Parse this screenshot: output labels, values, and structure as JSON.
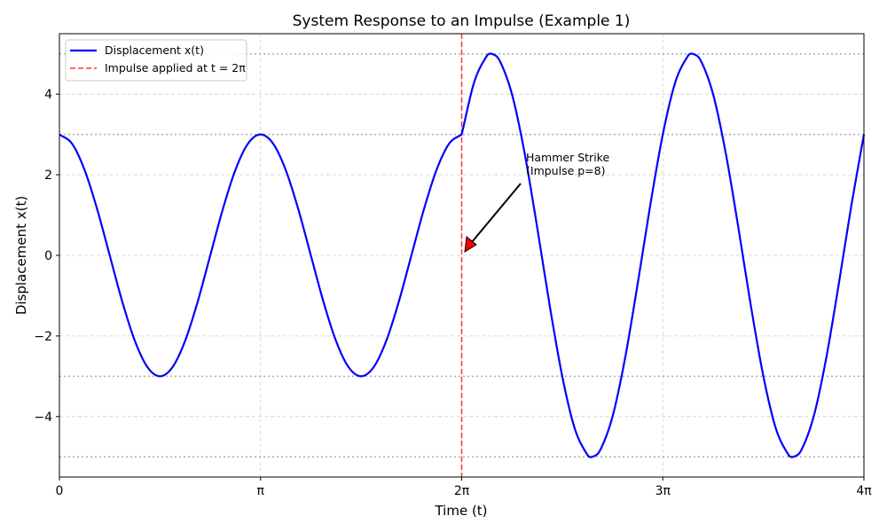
{
  "chart_data": {
    "type": "line",
    "title": "System Response to an Impulse (Example 1)",
    "xlabel": "Time (t)",
    "ylabel": "Displacement x(t)",
    "x_unit": "π",
    "xlim": [
      0,
      4
    ],
    "ylim": [
      -5.5,
      5.5
    ],
    "xticks": [
      {
        "v": 0,
        "label": "0"
      },
      {
        "v": 1,
        "label": "π"
      },
      {
        "v": 2,
        "label": "2π"
      },
      {
        "v": 3,
        "label": "3π"
      },
      {
        "v": 4,
        "label": "4π"
      }
    ],
    "yticks": [
      {
        "v": -4,
        "label": "−4"
      },
      {
        "v": -2,
        "label": "−2"
      },
      {
        "v": 0,
        "label": "0"
      },
      {
        "v": 2,
        "label": "2"
      },
      {
        "v": 4,
        "label": "4"
      }
    ],
    "grid": true,
    "legend_position": "top-left",
    "reference_lines_y": [
      3,
      -3,
      5,
      -5
    ],
    "series": [
      {
        "name": "Displacement x(t)",
        "color": "#0000ff",
        "x": [
          0,
          0.0625,
          0.125,
          0.1875,
          0.25,
          0.3125,
          0.375,
          0.4375,
          0.5,
          0.5625,
          0.625,
          0.6875,
          0.75,
          0.8125,
          0.875,
          0.9375,
          1,
          1.0625,
          1.125,
          1.1875,
          1.25,
          1.3125,
          1.375,
          1.4375,
          1.5,
          1.5625,
          1.625,
          1.6875,
          1.75,
          1.8125,
          1.875,
          1.9375,
          2,
          2.0625,
          2.125,
          2.1476,
          2.1875,
          2.25,
          2.3125,
          2.375,
          2.4375,
          2.5,
          2.5625,
          2.625,
          2.6476,
          2.6875,
          2.75,
          2.8125,
          2.875,
          2.9375,
          3,
          3.0625,
          3.125,
          3.1476,
          3.1875,
          3.25,
          3.3125,
          3.375,
          3.4375,
          3.5,
          3.5625,
          3.625,
          3.6476,
          3.6875,
          3.75,
          3.8125,
          3.875,
          3.9375,
          4
        ],
        "y": [
          3,
          2.772,
          2.121,
          1.148,
          0,
          -1.148,
          -2.121,
          -2.772,
          -3,
          -2.772,
          -2.121,
          -1.148,
          0,
          1.148,
          2.121,
          2.772,
          3,
          2.772,
          2.121,
          1.148,
          0,
          -1.148,
          -2.121,
          -2.772,
          -3,
          -2.772,
          -2.121,
          -1.148,
          0,
          1.148,
          2.121,
          2.772,
          3,
          4.303,
          4.95,
          5,
          4.844,
          4,
          2.548,
          0.707,
          -1.241,
          -3,
          -4.303,
          -4.95,
          -5,
          -4.844,
          -4,
          -2.548,
          -0.707,
          1.241,
          3,
          4.303,
          4.95,
          5,
          4.844,
          4,
          2.548,
          0.707,
          -1.241,
          -3,
          -4.303,
          -4.95,
          -5,
          -4.844,
          -4,
          -2.548,
          -0.707,
          1.241,
          3
        ]
      }
    ],
    "impulse_line": {
      "name": "Impulse applied at t = 2π",
      "x": 2,
      "color": "#ff3333"
    },
    "annotation": {
      "line1": "Hammer Strike",
      "line2": "(Impulse p=8)",
      "point_x": 2,
      "point_y": 0,
      "arrow_color": "#ff0000"
    }
  }
}
